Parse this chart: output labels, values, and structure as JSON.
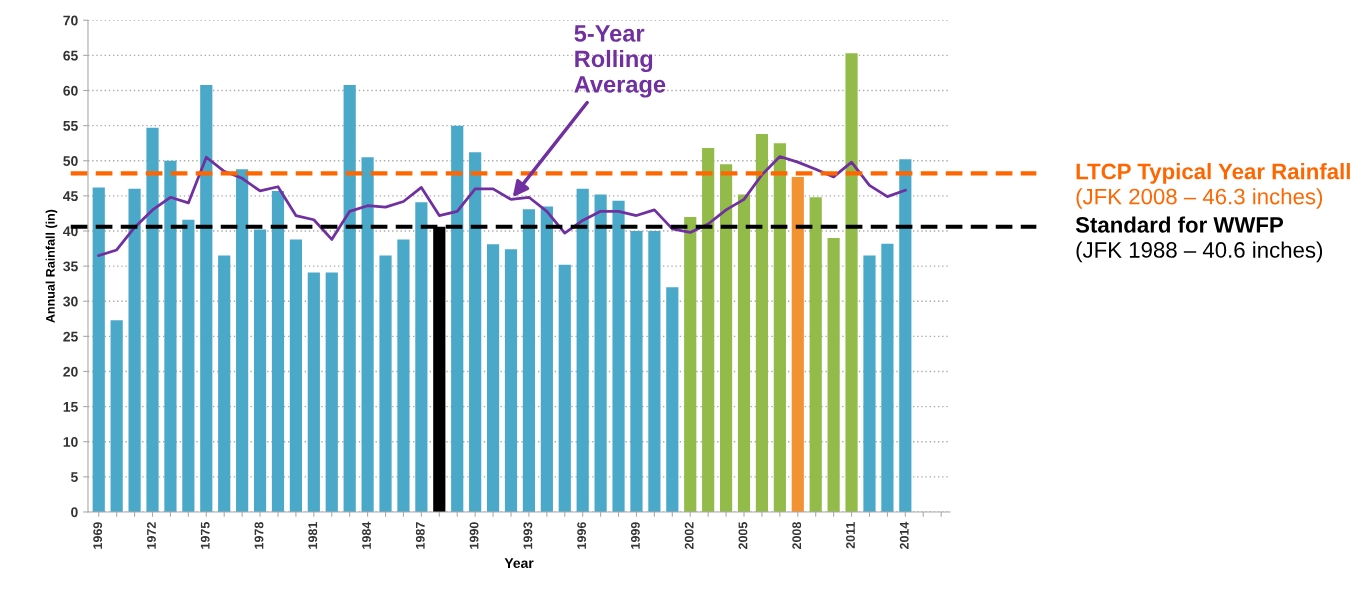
{
  "chart_data": {
    "type": "bar",
    "xlabel": "Year",
    "ylabel": "Annual Rainfall (in)",
    "x": [
      1969,
      1970,
      1971,
      1972,
      1973,
      1974,
      1975,
      1976,
      1977,
      1978,
      1979,
      1980,
      1981,
      1982,
      1983,
      1984,
      1985,
      1986,
      1987,
      1988,
      1989,
      1990,
      1991,
      1992,
      1993,
      1994,
      1995,
      1996,
      1997,
      1998,
      1999,
      2000,
      2001,
      2002,
      2003,
      2004,
      2005,
      2006,
      2007,
      2008,
      2009,
      2010,
      2011,
      2012,
      2013,
      2014
    ],
    "series": [
      {
        "values": [
          46.2,
          27.3,
          46,
          54.7,
          50,
          41.6,
          60.8,
          36.5,
          48.8,
          40.2,
          45.7,
          38.8,
          34.1,
          34.1,
          60.8,
          50.5,
          36.5,
          38.8,
          44.1,
          40.6,
          55,
          51.2,
          38.1,
          37.4,
          43.1,
          43.5,
          35.2,
          46,
          45.2,
          44.3,
          40,
          40,
          32,
          42,
          51.8,
          49.5,
          45.2,
          53.8,
          52.5,
          47.7,
          44.8,
          39,
          65.3,
          36.5,
          38.2,
          50.2
        ],
        "colors": [
          "#4aa8c8",
          "#4aa8c8",
          "#4aa8c8",
          "#4aa8c8",
          "#4aa8c8",
          "#4aa8c8",
          "#4aa8c8",
          "#4aa8c8",
          "#4aa8c8",
          "#4aa8c8",
          "#4aa8c8",
          "#4aa8c8",
          "#4aa8c8",
          "#4aa8c8",
          "#4aa8c8",
          "#4aa8c8",
          "#4aa8c8",
          "#4aa8c8",
          "#4aa8c8",
          "#000000",
          "#4aa8c8",
          "#4aa8c8",
          "#4aa8c8",
          "#4aa8c8",
          "#4aa8c8",
          "#4aa8c8",
          "#4aa8c8",
          "#4aa8c8",
          "#4aa8c8",
          "#4aa8c8",
          "#4aa8c8",
          "#4aa8c8",
          "#4aa8c8",
          "#92bb4a",
          "#92bb4a",
          "#92bb4a",
          "#92bb4a",
          "#92bb4a",
          "#92bb4a",
          "#f39233",
          "#92bb4a",
          "#92bb4a",
          "#92bb4a",
          "#4aa8c8",
          "#4aa8c8",
          "#4aa8c8"
        ]
      },
      {
        "type": "line",
        "name": "5-Year Rolling Average",
        "color": "#7030a0",
        "values": [
          36.5,
          37.3,
          40.5,
          43,
          44.8,
          44,
          50.5,
          48.5,
          47.5,
          45.7,
          46.3,
          42.2,
          41.6,
          38.8,
          42.8,
          43.6,
          43.4,
          44.2,
          46.2,
          42.2,
          42.8,
          46,
          46,
          44.5,
          44.8,
          42.8,
          39.7,
          41.5,
          42.8,
          42.8,
          42.2,
          43,
          40.3,
          39.8,
          41,
          43,
          44.5,
          48,
          50.6,
          49.8,
          48.8,
          47.7,
          49.8,
          46.5,
          44.9,
          45.8
        ]
      }
    ],
    "xlim": [
      1968.4,
      2016.5
    ],
    "xticks": [
      1969,
      {
        "value": 1970,
        "label": null
      },
      {
        "value": 1971,
        "label": null
      },
      1972,
      {
        "value": 1973,
        "label": null
      },
      {
        "value": 1974,
        "label": null
      },
      1975,
      {
        "value": 1976,
        "label": null
      },
      {
        "value": 1977,
        "label": null
      },
      1978,
      {
        "value": 1979,
        "label": null
      },
      {
        "value": 1980,
        "label": null
      },
      1981,
      {
        "value": 1982,
        "label": null
      },
      {
        "value": 1983,
        "label": null
      },
      1984,
      {
        "value": 1985,
        "label": null
      },
      {
        "value": 1986,
        "label": null
      },
      1987,
      {
        "value": 1988,
        "label": null
      },
      {
        "value": 1989,
        "label": null
      },
      1990,
      {
        "value": 1991,
        "label": null
      },
      {
        "value": 1992,
        "label": null
      },
      1993,
      {
        "value": 1994,
        "label": null
      },
      {
        "value": 1995,
        "label": null
      },
      1996,
      {
        "value": 1997,
        "label": null
      },
      {
        "value": 1998,
        "label": null
      },
      1999,
      {
        "value": 2000,
        "label": null
      },
      {
        "value": 2001,
        "label": null
      },
      2002,
      {
        "value": 2003,
        "label": null
      },
      {
        "value": 2004,
        "label": null
      },
      2005,
      {
        "value": 2006,
        "label": null
      },
      {
        "value": 2007,
        "label": null
      },
      2008,
      {
        "value": 2009,
        "label": null
      },
      {
        "value": 2010,
        "label": null
      },
      2011,
      {
        "value": 2012,
        "label": null
      },
      {
        "value": 2013,
        "label": null
      },
      2014,
      {
        "value": 2015,
        "label": null
      },
      {
        "value": 2016,
        "label": null
      }
    ],
    "ylim": [
      0,
      70
    ],
    "yticks": [
      0,
      5,
      10,
      15,
      20,
      25,
      30,
      35,
      40,
      45,
      50,
      55,
      60,
      65,
      70
    ],
    "grid": "y",
    "ref_lines": [
      {
        "axis": "y",
        "value": 48.2,
        "label": "LTCP Typical Year Rainfall",
        "color": "#ff6600",
        "line_style": "dashed"
      },
      {
        "axis": "y",
        "value": 40.6,
        "label": "Standard for WWFP",
        "color": "#000000",
        "line_style": "dashed"
      }
    ],
    "annotations": [
      "(JFK 2008 – 46.3 inches)",
      "(JFK 1988 – 40.6 inches)"
    ]
  }
}
